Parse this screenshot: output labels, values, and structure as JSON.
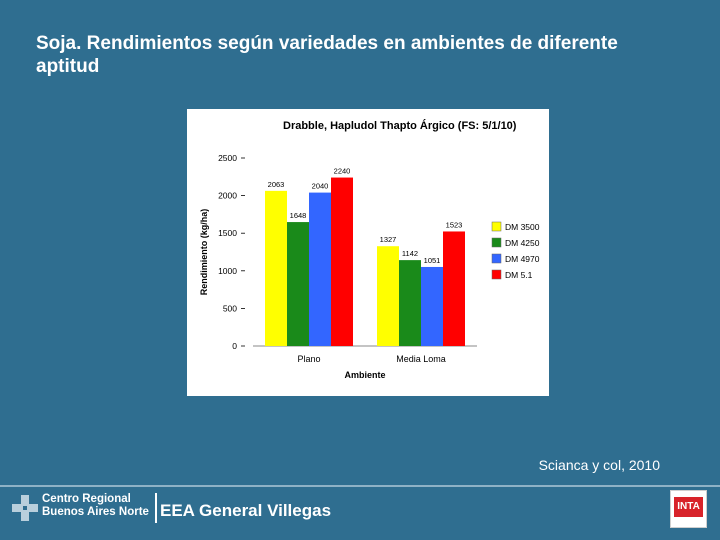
{
  "slide": {
    "title": "Soja. Rendimientos según variedades en ambientes de diferente aptitud",
    "citation": "Scianca y col, 2010"
  },
  "footer": {
    "org_line1": "Centro Regional",
    "org_line2": "Buenos Aires Norte",
    "station": "EEA General Villegas",
    "inta_logo_text": "INTA"
  },
  "colors": {
    "background": "#2f6e90",
    "series": [
      "#ffff00",
      "#1a8a1a",
      "#3366ff",
      "#ff0000"
    ]
  },
  "chart_data": {
    "type": "bar",
    "title": "Drabble, Hapludol Thapto Árgico (FS: 5/1/10)",
    "xlabel": "Ambiente",
    "ylabel": "Rendimiento (kg/ha)",
    "ylim": [
      0,
      2500
    ],
    "yticks": [
      "0",
      "500",
      "1000",
      "1500",
      "2000",
      "2500"
    ],
    "categories": [
      "Plano",
      "Media Loma"
    ],
    "series": [
      {
        "name": "DM 3500",
        "color": "#ffff00",
        "values": [
          2063,
          1327
        ]
      },
      {
        "name": "DM 4250",
        "color": "#1a8a1a",
        "values": [
          1648,
          1142
        ]
      },
      {
        "name": "DM 4970",
        "color": "#3366ff",
        "values": [
          2040,
          1051
        ]
      },
      {
        "name": "DM 5.1",
        "color": "#ff0000",
        "values": [
          2240,
          1523
        ]
      }
    ],
    "data_labels": [
      [
        "2063",
        "1648",
        "2040",
        "2240"
      ],
      [
        "1327",
        "1142",
        "1051",
        "1523"
      ]
    ],
    "legend": "right",
    "grid": false
  }
}
